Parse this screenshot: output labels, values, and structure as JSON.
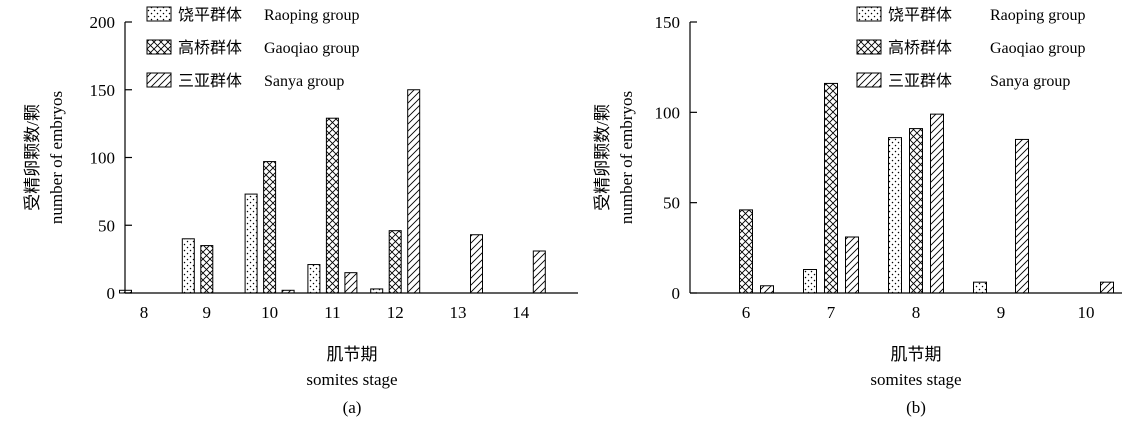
{
  "chart_data": [
    {
      "type": "bar",
      "panel_label": "(a)",
      "xlabel": [
        "肌节期",
        "somites stage"
      ],
      "ylabel": [
        "受精卵颗数/颗",
        "number of embryos"
      ],
      "ylim": [
        0,
        200
      ],
      "yticks": [
        0,
        50,
        100,
        150,
        200
      ],
      "categories": [
        "8",
        "9",
        "10",
        "11",
        "12",
        "13",
        "14"
      ],
      "legend_position": "top-left",
      "series": [
        {
          "name": "饶平群体",
          "name_en": "Raoping group",
          "pattern": "dots",
          "values": [
            2,
            40,
            73,
            21,
            3,
            0,
            0
          ]
        },
        {
          "name": "高桥群体",
          "name_en": "Gaoqiao group",
          "pattern": "crosshatch",
          "values": [
            0,
            35,
            97,
            129,
            46,
            0,
            0
          ]
        },
        {
          "name": "三亚群体",
          "name_en": "Sanya group",
          "pattern": "diagonal",
          "values": [
            0,
            0,
            2,
            15,
            150,
            43,
            31
          ]
        }
      ]
    },
    {
      "type": "bar",
      "panel_label": "(b)",
      "xlabel": [
        "肌节期",
        "somites stage"
      ],
      "ylabel": [
        "受精卵颗数/颗",
        "number of embryos"
      ],
      "ylim": [
        0,
        150
      ],
      "yticks": [
        0,
        50,
        100,
        150
      ],
      "categories": [
        "6",
        "7",
        "8",
        "9",
        "10"
      ],
      "legend_position": "top-right",
      "series": [
        {
          "name": "饶平群体",
          "name_en": "Raoping group",
          "pattern": "dots",
          "values": [
            0,
            13,
            86,
            6,
            0
          ]
        },
        {
          "name": "高桥群体",
          "name_en": "Gaoqiao group",
          "pattern": "crosshatch",
          "values": [
            46,
            116,
            91,
            0,
            0
          ]
        },
        {
          "name": "三亚群体",
          "name_en": "Sanya group",
          "pattern": "diagonal",
          "values": [
            4,
            31,
            99,
            85,
            6
          ]
        }
      ]
    }
  ]
}
